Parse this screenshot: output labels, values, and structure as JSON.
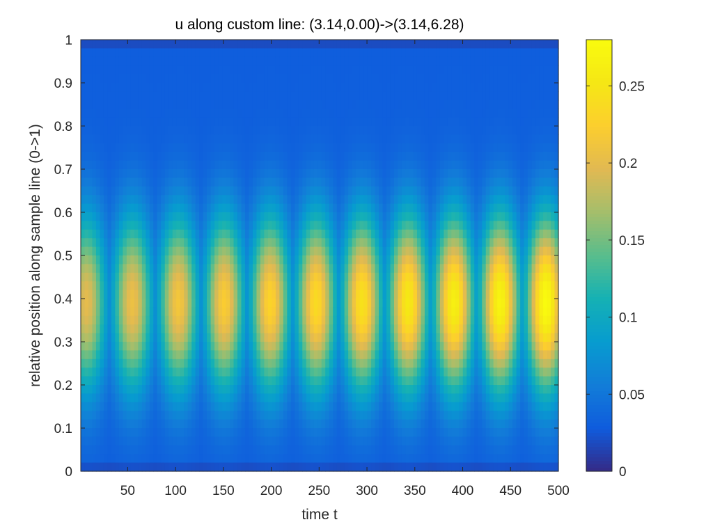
{
  "chart_data": {
    "type": "heatmap",
    "title": "u along custom line: (3.14,0.00)->(3.14,6.28)",
    "xlabel": "time t",
    "ylabel": "relative position along sample line (0->1)",
    "xlim": [
      1,
      500
    ],
    "ylim": [
      0,
      1
    ],
    "xticks": [
      50,
      100,
      150,
      200,
      250,
      300,
      350,
      400,
      450,
      500
    ],
    "yticks": [
      0,
      0.1,
      0.2,
      0.3,
      0.4,
      0.5,
      0.6,
      0.7,
      0.8,
      0.9,
      1
    ],
    "ytick_labels": [
      "0",
      "0.1",
      "0.2",
      "0.3",
      "0.4",
      "0.5",
      "0.6",
      "0.7",
      "0.8",
      "0.9",
      "1"
    ],
    "colorbar": {
      "clim": [
        0,
        0.28
      ],
      "ticks": [
        0,
        0.05,
        0.1,
        0.15,
        0.2,
        0.25
      ],
      "tick_labels": [
        "0",
        "0.05",
        "0.1",
        "0.15",
        "0.2",
        "0.25"
      ],
      "colormap": "parula"
    },
    "pattern": {
      "background_value": 0.03,
      "peak_position": 0.39,
      "peaks": [
        {
          "t": 7,
          "value": 0.2
        },
        {
          "t": 55,
          "value": 0.207
        },
        {
          "t": 103,
          "value": 0.215
        },
        {
          "t": 151,
          "value": 0.222
        },
        {
          "t": 199,
          "value": 0.23
        },
        {
          "t": 247,
          "value": 0.238
        },
        {
          "t": 295,
          "value": 0.246
        },
        {
          "t": 343,
          "value": 0.255
        },
        {
          "t": 391,
          "value": 0.263
        },
        {
          "t": 439,
          "value": 0.27
        },
        {
          "t": 487,
          "value": 0.28
        }
      ]
    }
  }
}
